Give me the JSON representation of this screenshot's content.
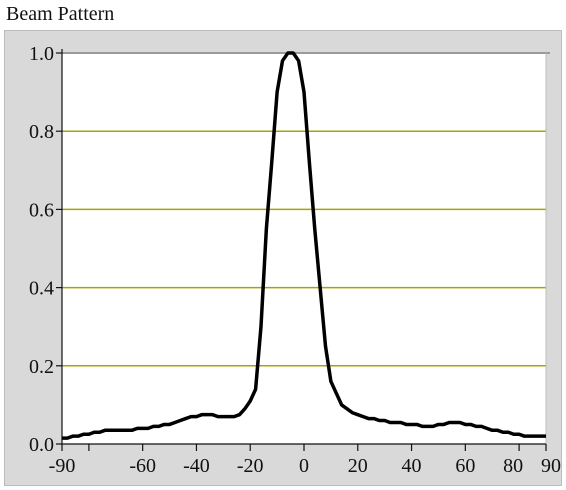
{
  "window": {
    "title": "Beam Pattern"
  },
  "chart_data": {
    "type": "line",
    "title": "Beam Pattern",
    "xlabel": "",
    "ylabel": "",
    "xlim": [
      -90,
      90
    ],
    "ylim": [
      0.0,
      1.0
    ],
    "x_tick_labels": [
      "-90",
      "-60",
      "-40",
      "-20",
      "0",
      "20",
      "40",
      "60",
      "80",
      "90"
    ],
    "x_tick_values": [
      -90,
      -60,
      -40,
      -20,
      0,
      20,
      40,
      60,
      80,
      90
    ],
    "x_minor_ticks": [
      -80
    ],
    "y_tick_labels": [
      "0.0",
      "0.2",
      "0.4",
      "0.6",
      "0.8",
      "1.0"
    ],
    "y_tick_values": [
      0.0,
      0.2,
      0.4,
      0.6,
      0.8,
      1.0
    ],
    "grid": {
      "horizontal": true,
      "vertical": false
    },
    "colors": {
      "line": "#000000",
      "grid": "#a8a400",
      "plot_bg": "#ffffff",
      "panel_bg": "#d9d9d9"
    },
    "series": [
      {
        "x": [
          -90,
          -88,
          -86,
          -84,
          -82,
          -80,
          -78,
          -76,
          -74,
          -72,
          -70,
          -68,
          -66,
          -64,
          -62,
          -60,
          -58,
          -56,
          -54,
          -52,
          -50,
          -48,
          -46,
          -44,
          -42,
          -40,
          -38,
          -36,
          -34,
          -32,
          -30,
          -28,
          -26,
          -24,
          -22,
          -20,
          -18,
          -16,
          -14,
          -12,
          -10,
          -8,
          -6,
          -4,
          -2,
          0,
          2,
          4,
          6,
          8,
          10,
          12,
          14,
          16,
          18,
          20,
          22,
          24,
          26,
          28,
          30,
          32,
          34,
          36,
          38,
          40,
          42,
          44,
          46,
          48,
          50,
          52,
          54,
          56,
          58,
          60,
          62,
          64,
          66,
          68,
          70,
          72,
          74,
          76,
          78,
          80,
          82,
          84,
          86,
          88,
          90
        ],
        "y": [
          0.015,
          0.015,
          0.02,
          0.02,
          0.025,
          0.025,
          0.03,
          0.03,
          0.035,
          0.035,
          0.035,
          0.035,
          0.035,
          0.035,
          0.04,
          0.04,
          0.04,
          0.045,
          0.045,
          0.05,
          0.05,
          0.055,
          0.06,
          0.065,
          0.07,
          0.07,
          0.075,
          0.075,
          0.075,
          0.07,
          0.07,
          0.07,
          0.07,
          0.075,
          0.09,
          0.11,
          0.14,
          0.3,
          0.55,
          0.72,
          0.9,
          0.98,
          1.0,
          1.0,
          0.98,
          0.9,
          0.72,
          0.55,
          0.4,
          0.25,
          0.16,
          0.13,
          0.1,
          0.09,
          0.08,
          0.075,
          0.07,
          0.065,
          0.065,
          0.06,
          0.06,
          0.055,
          0.055,
          0.055,
          0.05,
          0.05,
          0.05,
          0.045,
          0.045,
          0.045,
          0.05,
          0.05,
          0.055,
          0.055,
          0.055,
          0.05,
          0.05,
          0.045,
          0.045,
          0.04,
          0.035,
          0.035,
          0.03,
          0.03,
          0.025,
          0.025,
          0.02,
          0.02,
          0.02,
          0.02,
          0.02
        ]
      }
    ]
  }
}
